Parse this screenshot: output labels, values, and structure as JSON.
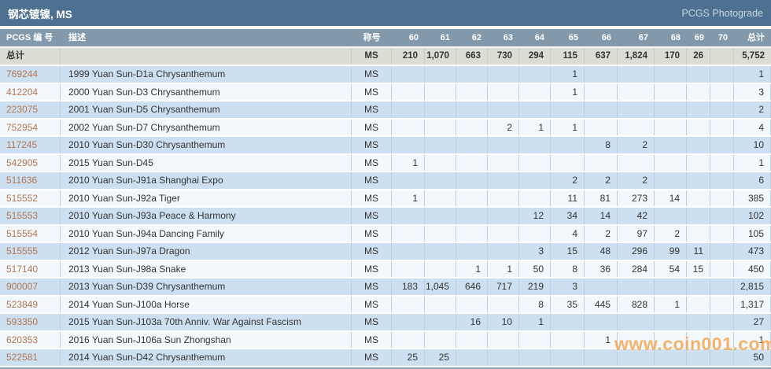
{
  "title_bar": {
    "title": "钢芯镀镍, MS",
    "photograde_link": "PCGS Photograde"
  },
  "table": {
    "columns": [
      "PCGS 编 号",
      "描述",
      "称号",
      "60",
      "61",
      "62",
      "63",
      "64",
      "65",
      "66",
      "67",
      "68",
      "69",
      "70",
      "总计"
    ],
    "totals": {
      "label": "总计",
      "designation": "MS",
      "grades": [
        "210",
        "1,070",
        "663",
        "730",
        "294",
        "115",
        "637",
        "1,824",
        "170",
        "26",
        ""
      ],
      "total": "5,752"
    },
    "rows": [
      {
        "id": "769244",
        "desc": "1999 Yuan Sun-D1a Chrysanthemum",
        "designation": "MS",
        "grades": [
          "",
          "",
          "",
          "",
          "",
          "1",
          "",
          "",
          "",
          "",
          ""
        ],
        "total": "1"
      },
      {
        "id": "412204",
        "desc": "2000 Yuan Sun-D3 Chrysanthemum",
        "designation": "MS",
        "grades": [
          "",
          "",
          "",
          "",
          "",
          "1",
          "",
          "",
          "",
          "",
          ""
        ],
        "total": "3"
      },
      {
        "id": "223075",
        "desc": "2001 Yuan Sun-D5 Chrysanthemum",
        "designation": "MS",
        "grades": [
          "",
          "",
          "",
          "",
          "",
          "",
          "",
          "",
          "",
          "",
          ""
        ],
        "total": "2"
      },
      {
        "id": "752954",
        "desc": "2002 Yuan Sun-D7 Chrysanthemum",
        "designation": "MS",
        "grades": [
          "",
          "",
          "",
          "2",
          "1",
          "1",
          "",
          "",
          "",
          "",
          ""
        ],
        "total": "4"
      },
      {
        "id": "117245",
        "desc": "2010 Yuan Sun-D30 Chrysanthemum",
        "designation": "MS",
        "grades": [
          "",
          "",
          "",
          "",
          "",
          "",
          "8",
          "2",
          "",
          "",
          ""
        ],
        "total": "10"
      },
      {
        "id": "542905",
        "desc": "2015 Yuan Sun-D45",
        "designation": "MS",
        "grades": [
          "1",
          "",
          "",
          "",
          "",
          "",
          "",
          "",
          "",
          "",
          ""
        ],
        "total": "1"
      },
      {
        "id": "511636",
        "desc": "2010 Yuan Sun-J91a Shanghai Expo",
        "designation": "MS",
        "grades": [
          "",
          "",
          "",
          "",
          "",
          "2",
          "2",
          "2",
          "",
          "",
          ""
        ],
        "total": "6"
      },
      {
        "id": "515552",
        "desc": "2010 Yuan Sun-J92a Tiger",
        "designation": "MS",
        "grades": [
          "1",
          "",
          "",
          "",
          "",
          "11",
          "81",
          "273",
          "14",
          "",
          ""
        ],
        "total": "385"
      },
      {
        "id": "515553",
        "desc": "2010 Yuan Sun-J93a Peace & Harmony",
        "designation": "MS",
        "grades": [
          "",
          "",
          "",
          "",
          "12",
          "34",
          "14",
          "42",
          "",
          "",
          ""
        ],
        "total": "102"
      },
      {
        "id": "515554",
        "desc": "2010 Yuan Sun-J94a Dancing Family",
        "designation": "MS",
        "grades": [
          "",
          "",
          "",
          "",
          "",
          "4",
          "2",
          "97",
          "2",
          "",
          ""
        ],
        "total": "105"
      },
      {
        "id": "515555",
        "desc": "2012 Yuan Sun-J97a Dragon",
        "designation": "MS",
        "grades": [
          "",
          "",
          "",
          "",
          "3",
          "15",
          "48",
          "296",
          "99",
          "11",
          ""
        ],
        "total": "473"
      },
      {
        "id": "517140",
        "desc": "2013 Yuan Sun-J98a Snake",
        "designation": "MS",
        "grades": [
          "",
          "",
          "1",
          "1",
          "50",
          "8",
          "36",
          "284",
          "54",
          "15",
          ""
        ],
        "total": "450"
      },
      {
        "id": "900007",
        "desc": "2013 Yuan Sun-D39 Chrysanthemum",
        "designation": "MS",
        "grades": [
          "183",
          "1,045",
          "646",
          "717",
          "219",
          "3",
          "",
          "",
          "",
          "",
          ""
        ],
        "total": "2,815"
      },
      {
        "id": "523849",
        "desc": "2014 Yuan Sun-J100a Horse",
        "designation": "MS",
        "grades": [
          "",
          "",
          "",
          "",
          "8",
          "35",
          "445",
          "828",
          "1",
          "",
          ""
        ],
        "total": "1,317"
      },
      {
        "id": "593350",
        "desc": "2015 Yuan Sun-J103a 70th Anniv. War Against Fascism",
        "designation": "MS",
        "grades": [
          "",
          "",
          "16",
          "10",
          "1",
          "",
          "",
          "",
          "",
          "",
          ""
        ],
        "total": "27"
      },
      {
        "id": "620353",
        "desc": "2016 Yuan Sun-J106a Sun Zhongshan",
        "designation": "MS",
        "grades": [
          "",
          "",
          "",
          "",
          "",
          "",
          "1",
          "",
          "",
          "",
          ""
        ],
        "total": "1"
      },
      {
        "id": "522581",
        "desc": "2014 Yuan Sun-D42 Chrysanthemum",
        "designation": "MS",
        "grades": [
          "25",
          "25",
          "",
          "",
          "",
          "",
          "",
          "",
          "",
          "",
          ""
        ],
        "total": "50"
      }
    ]
  },
  "watermark": "www.coin001.com",
  "colors": {
    "title_bar_bg": "#4e7191",
    "header_bg": "#8298ab",
    "totals_bg": "#dbdcd4",
    "row_odd_bg": "#cce0f1",
    "row_even_bg": "#f3f8fc",
    "cell_border": "#b9cfe0",
    "pcgs_link": "#b5754f",
    "watermark_orange": "#f59f45"
  }
}
